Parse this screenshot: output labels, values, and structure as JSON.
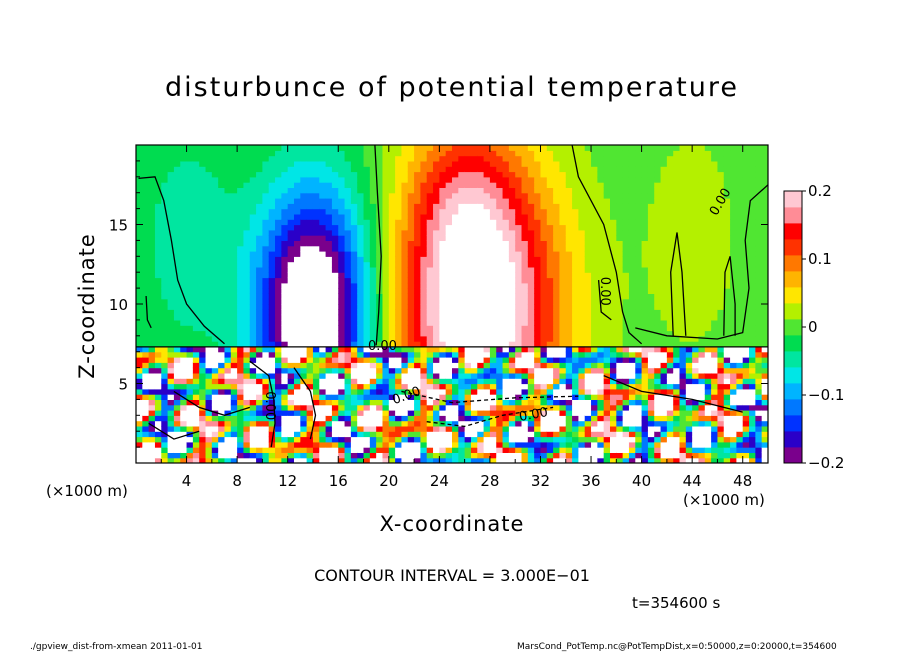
{
  "chart_data": {
    "type": "heatmap",
    "title": "disturbunce of potential temperature",
    "xlabel": "X-coordinate",
    "ylabel": "Z-coordinate",
    "x_unit": "(×1000 m)",
    "xlim": [
      0,
      50
    ],
    "ylim": [
      0,
      20
    ],
    "x_ticks": [
      "4",
      "8",
      "12",
      "16",
      "20",
      "24",
      "28",
      "32",
      "36",
      "40",
      "44",
      "48"
    ],
    "y_ticks": [
      "5",
      "10",
      "15"
    ],
    "colorbar": {
      "range": [
        -0.2,
        0.2
      ],
      "tick_labels": [
        "0.2",
        "0.1",
        "0",
        "−0.1",
        "−0.2"
      ],
      "colors": [
        "#7a008c",
        "#2a00c8",
        "#0032ff",
        "#0078ff",
        "#00b4ff",
        "#00e6e6",
        "#00e6a0",
        "#00dc50",
        "#50e632",
        "#b4f000",
        "#ffe600",
        "#ffb400",
        "#ff7800",
        "#ff3200",
        "#ff0000",
        "#ff8c96",
        "#ffc8d2"
      ]
    },
    "contour_labels": [
      "0.00",
      "0.00",
      "0.00",
      "0.00",
      "0.00",
      "0.00"
    ],
    "contour_interval_text": "CONTOUR INTERVAL = 3.000E−01",
    "time_text": "t=354600 s",
    "footer_left": "./gpview_dist-from-xmean  2011-01-01",
    "footer_right": "MarsCond_PotTemp.nc@PotTempDist,x=0:50000,z=0:20000,t=354600"
  }
}
